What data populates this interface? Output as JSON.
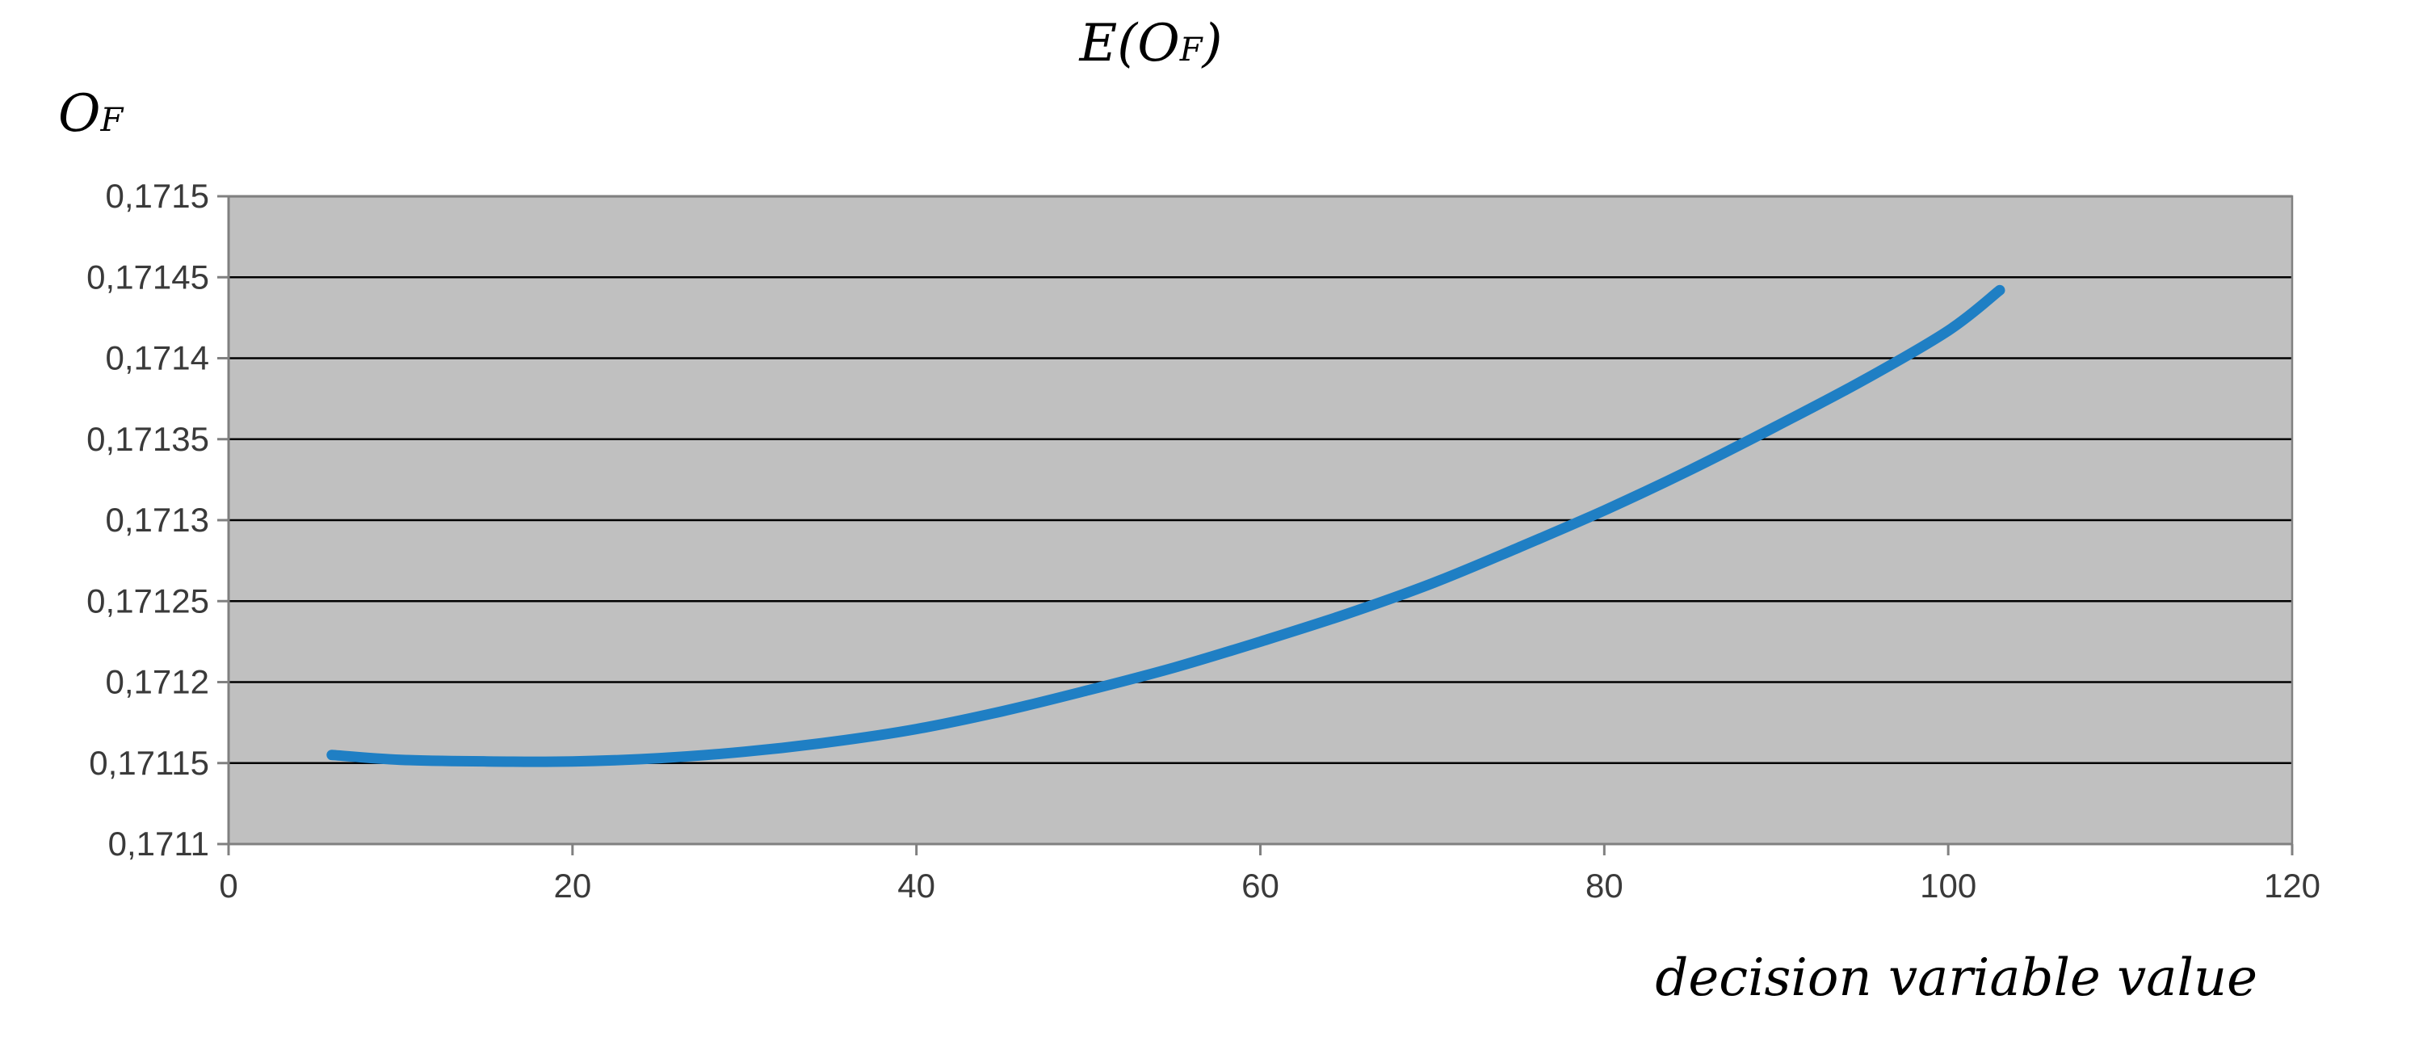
{
  "chart_data": {
    "type": "line",
    "title_main": "E(O",
    "title_sub": "F",
    "title_close": ")",
    "ylabel_main": "O",
    "ylabel_sub": "F",
    "xlabel": "decision variable value",
    "xlim": [
      0,
      120
    ],
    "ylim": [
      0.1711,
      0.1715
    ],
    "grid": true,
    "x_ticks": [
      0,
      20,
      40,
      60,
      80,
      100,
      120
    ],
    "x_tick_labels": [
      "0",
      "20",
      "40",
      "60",
      "80",
      "100",
      "120"
    ],
    "y_ticks": [
      0.1711,
      0.17115,
      0.1712,
      0.17125,
      0.1713,
      0.17135,
      0.1714,
      0.17145,
      0.1715
    ],
    "y_tick_labels": [
      "0,1711",
      "0,17115",
      "0,1712",
      "0,17125",
      "0,1713",
      "0,17135",
      "0,1714",
      "0,17145",
      "0,1715"
    ],
    "colors": {
      "plot_bg": "#c0c0c0",
      "line": "#1f7fc4",
      "grid": "#000000"
    },
    "series": [
      {
        "x": [
          6,
          10,
          15,
          20,
          25,
          30,
          35,
          40,
          45,
          50,
          55,
          60,
          65,
          70,
          75,
          80,
          85,
          90,
          95,
          100,
          103
        ],
        "y": [
          0.171155,
          0.171152,
          0.171151,
          0.171151,
          0.171153,
          0.171157,
          0.171163,
          0.171171,
          0.171182,
          0.171195,
          0.171209,
          0.171225,
          0.171242,
          0.171261,
          0.171283,
          0.171306,
          0.171331,
          0.171358,
          0.171386,
          0.171417,
          0.171442
        ]
      }
    ]
  }
}
